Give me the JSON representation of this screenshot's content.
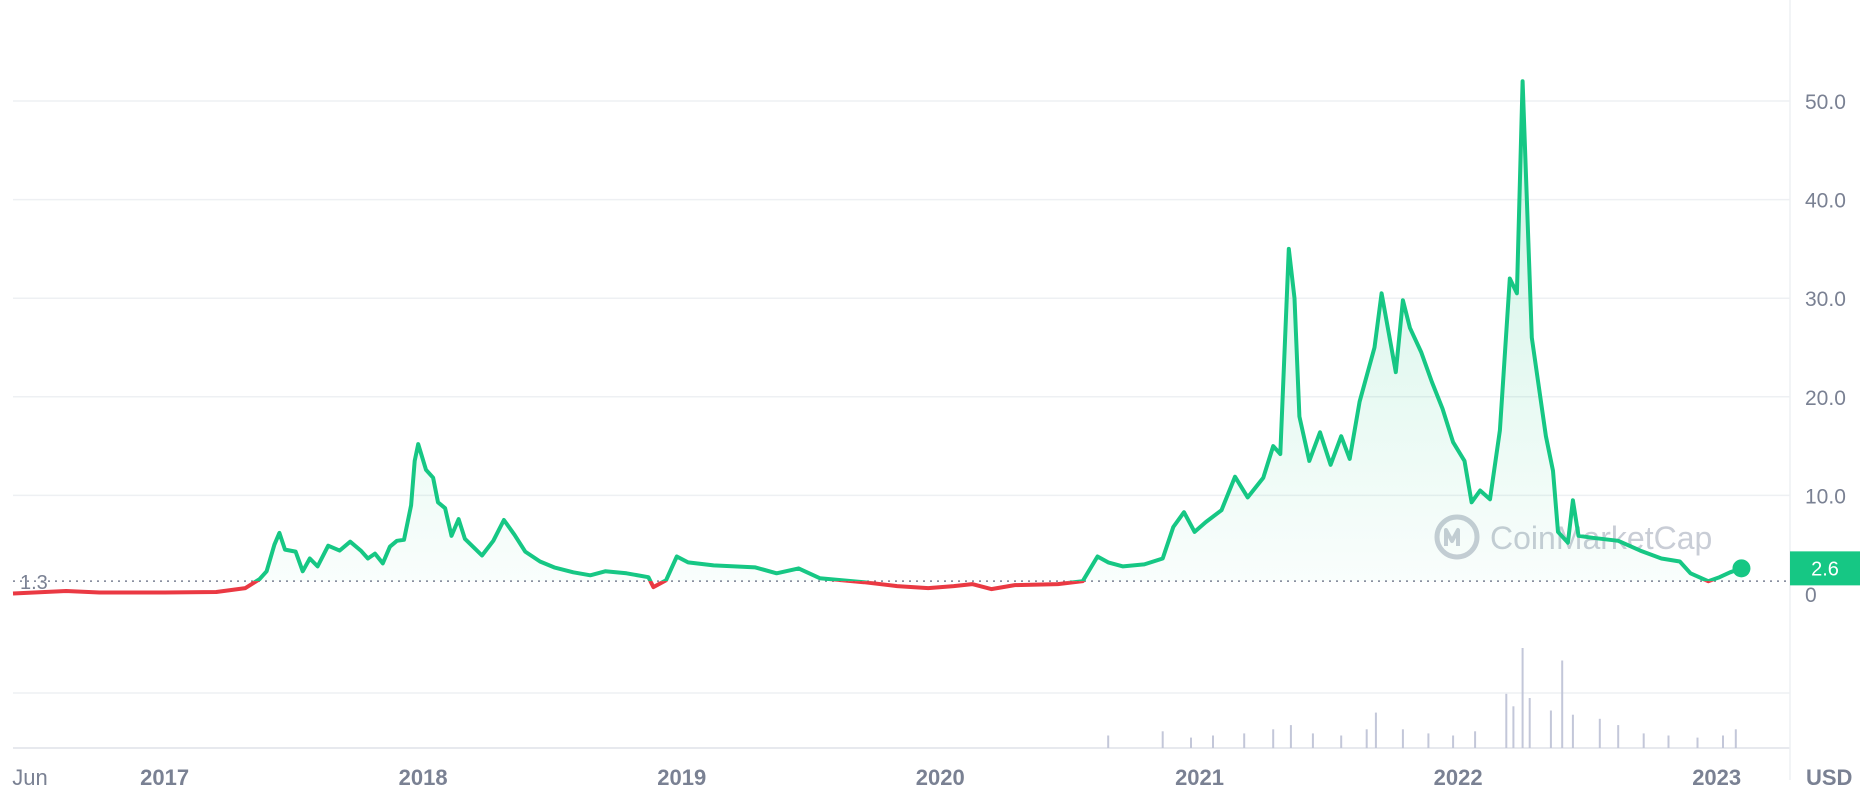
{
  "chart_data": {
    "type": "line",
    "currency": "USD",
    "baseline_value": 1.3,
    "current_value": 2.6,
    "baseline_label": "1.3",
    "current_label": "2.6",
    "ylim": [
      0,
      58
    ],
    "y_ticks": [
      "0",
      "10.0",
      "20.0",
      "30.0",
      "40.0",
      "50.0"
    ],
    "y_tick_values": [
      0,
      10,
      20,
      30,
      40,
      50
    ],
    "x_ticks": [
      "Jun",
      "2017",
      "2018",
      "2019",
      "2020",
      "2021",
      "2022",
      "2023"
    ],
    "x_tick_dates": [
      "2016-06-01",
      "2017-01-01",
      "2018-01-01",
      "2019-01-01",
      "2020-01-01",
      "2021-01-01",
      "2022-01-01",
      "2023-01-01"
    ],
    "xlim": [
      "2016-06-01",
      "2023-02-10"
    ],
    "watermark": "CoinMarketCap",
    "colors": {
      "up": "#16c784",
      "down": "#ea3943",
      "axis_text": "#7a8193",
      "grid": "#eef0f3",
      "volume": "#c3c7d9"
    },
    "series": [
      {
        "values": [
          [
            "2016-06-01",
            0.05
          ],
          [
            "2016-08-15",
            0.3
          ],
          [
            "2016-10-01",
            0.15
          ],
          [
            "2017-01-01",
            0.15
          ],
          [
            "2017-03-15",
            0.2
          ],
          [
            "2017-04-25",
            0.6
          ],
          [
            "2017-05-15",
            1.5
          ],
          [
            "2017-05-25",
            2.3
          ],
          [
            "2017-06-05",
            5.0
          ],
          [
            "2017-06-12",
            6.2
          ],
          [
            "2017-06-20",
            4.5
          ],
          [
            "2017-07-05",
            4.3
          ],
          [
            "2017-07-15",
            2.3
          ],
          [
            "2017-07-25",
            3.6
          ],
          [
            "2017-08-05",
            2.8
          ],
          [
            "2017-08-20",
            4.9
          ],
          [
            "2017-09-05",
            4.4
          ],
          [
            "2017-09-20",
            5.3
          ],
          [
            "2017-10-05",
            4.4
          ],
          [
            "2017-10-15",
            3.6
          ],
          [
            "2017-10-25",
            4.1
          ],
          [
            "2017-11-05",
            3.1
          ],
          [
            "2017-11-15",
            4.8
          ],
          [
            "2017-11-25",
            5.4
          ],
          [
            "2017-12-05",
            5.5
          ],
          [
            "2017-12-15",
            9.0
          ],
          [
            "2017-12-20",
            13.5
          ],
          [
            "2017-12-25",
            15.2
          ],
          [
            "2018-01-05",
            12.6
          ],
          [
            "2018-01-15",
            11.8
          ],
          [
            "2018-01-22",
            9.3
          ],
          [
            "2018-02-01",
            8.7
          ],
          [
            "2018-02-10",
            5.9
          ],
          [
            "2018-02-20",
            7.6
          ],
          [
            "2018-03-01",
            5.6
          ],
          [
            "2018-03-15",
            4.6
          ],
          [
            "2018-03-25",
            3.9
          ],
          [
            "2018-04-10",
            5.4
          ],
          [
            "2018-04-25",
            7.5
          ],
          [
            "2018-05-10",
            6.0
          ],
          [
            "2018-05-25",
            4.3
          ],
          [
            "2018-06-15",
            3.3
          ],
          [
            "2018-07-05",
            2.7
          ],
          [
            "2018-08-01",
            2.2
          ],
          [
            "2018-08-25",
            1.9
          ],
          [
            "2018-09-15",
            2.3
          ],
          [
            "2018-10-15",
            2.1
          ],
          [
            "2018-11-15",
            1.7
          ],
          [
            "2018-11-22",
            0.7
          ],
          [
            "2018-12-10",
            1.4
          ],
          [
            "2018-12-25",
            3.8
          ],
          [
            "2019-01-10",
            3.2
          ],
          [
            "2019-02-15",
            2.9
          ],
          [
            "2019-04-15",
            2.7
          ],
          [
            "2019-05-15",
            2.1
          ],
          [
            "2019-06-15",
            2.6
          ],
          [
            "2019-07-15",
            1.6
          ],
          [
            "2019-09-15",
            1.2
          ],
          [
            "2019-11-01",
            0.8
          ],
          [
            "2019-12-15",
            0.6
          ],
          [
            "2020-01-20",
            0.8
          ],
          [
            "2020-02-15",
            1.0
          ],
          [
            "2020-03-13",
            0.5
          ],
          [
            "2020-04-15",
            0.9
          ],
          [
            "2020-06-15",
            1.0
          ],
          [
            "2020-07-20",
            1.3
          ],
          [
            "2020-08-10",
            3.8
          ],
          [
            "2020-08-25",
            3.2
          ],
          [
            "2020-09-15",
            2.8
          ],
          [
            "2020-10-15",
            3.0
          ],
          [
            "2020-11-10",
            3.6
          ],
          [
            "2020-11-25",
            6.8
          ],
          [
            "2020-12-10",
            8.3
          ],
          [
            "2020-12-25",
            6.3
          ],
          [
            "2021-01-10",
            7.3
          ],
          [
            "2021-02-01",
            8.5
          ],
          [
            "2021-02-20",
            11.9
          ],
          [
            "2021-03-10",
            9.8
          ],
          [
            "2021-04-01",
            11.8
          ],
          [
            "2021-04-15",
            15.0
          ],
          [
            "2021-04-25",
            14.2
          ],
          [
            "2021-05-07",
            35.0
          ],
          [
            "2021-05-15",
            30.0
          ],
          [
            "2021-05-22",
            18.0
          ],
          [
            "2021-06-05",
            13.5
          ],
          [
            "2021-06-20",
            16.4
          ],
          [
            "2021-07-05",
            13.1
          ],
          [
            "2021-07-20",
            16.0
          ],
          [
            "2021-08-01",
            13.7
          ],
          [
            "2021-08-15",
            19.5
          ],
          [
            "2021-09-05",
            25.0
          ],
          [
            "2021-09-15",
            30.5
          ],
          [
            "2021-09-25",
            26.5
          ],
          [
            "2021-10-05",
            22.5
          ],
          [
            "2021-10-15",
            29.8
          ],
          [
            "2021-10-25",
            27.0
          ],
          [
            "2021-11-10",
            24.5
          ],
          [
            "2021-11-25",
            21.5
          ],
          [
            "2021-12-10",
            18.8
          ],
          [
            "2021-12-25",
            15.4
          ],
          [
            "2022-01-10",
            13.5
          ],
          [
            "2022-01-20",
            9.3
          ],
          [
            "2022-02-01",
            10.5
          ],
          [
            "2022-02-15",
            9.6
          ],
          [
            "2022-03-01",
            16.6
          ],
          [
            "2022-03-15",
            32.0
          ],
          [
            "2022-03-25",
            30.5
          ],
          [
            "2022-04-02",
            52.0
          ],
          [
            "2022-04-15",
            26.0
          ],
          [
            "2022-05-05",
            16.0
          ],
          [
            "2022-05-15",
            12.5
          ],
          [
            "2022-05-22",
            6.3
          ],
          [
            "2022-06-05",
            5.2
          ],
          [
            "2022-06-12",
            9.5
          ],
          [
            "2022-06-20",
            5.9
          ],
          [
            "2022-07-10",
            5.7
          ],
          [
            "2022-08-15",
            5.4
          ],
          [
            "2022-09-15",
            4.4
          ],
          [
            "2022-10-15",
            3.6
          ],
          [
            "2022-11-10",
            3.3
          ],
          [
            "2022-11-25",
            2.1
          ],
          [
            "2022-12-20",
            1.3
          ],
          [
            "2023-01-05",
            1.7
          ],
          [
            "2023-01-20",
            2.2
          ],
          [
            "2023-02-05",
            2.6
          ]
        ]
      }
    ],
    "volume": [
      [
        "2020-08-25",
        0.3
      ],
      [
        "2020-11-10",
        0.4
      ],
      [
        "2020-12-20",
        0.25
      ],
      [
        "2021-01-20",
        0.3
      ],
      [
        "2021-03-05",
        0.35
      ],
      [
        "2021-04-15",
        0.45
      ],
      [
        "2021-05-10",
        0.55
      ],
      [
        "2021-06-10",
        0.35
      ],
      [
        "2021-07-20",
        0.3
      ],
      [
        "2021-08-25",
        0.45
      ],
      [
        "2021-09-07",
        0.85
      ],
      [
        "2021-10-15",
        0.45
      ],
      [
        "2021-11-20",
        0.35
      ],
      [
        "2021-12-25",
        0.3
      ],
      [
        "2022-01-25",
        0.4
      ],
      [
        "2022-03-10",
        1.3
      ],
      [
        "2022-03-20",
        1.0
      ],
      [
        "2022-04-02",
        2.4
      ],
      [
        "2022-04-12",
        1.2
      ],
      [
        "2022-05-12",
        0.9
      ],
      [
        "2022-05-28",
        2.1
      ],
      [
        "2022-06-12",
        0.8
      ],
      [
        "2022-07-20",
        0.7
      ],
      [
        "2022-08-15",
        0.55
      ],
      [
        "2022-09-20",
        0.35
      ],
      [
        "2022-10-25",
        0.3
      ],
      [
        "2022-12-05",
        0.25
      ],
      [
        "2023-01-10",
        0.3
      ],
      [
        "2023-01-28",
        0.45
      ]
    ]
  }
}
